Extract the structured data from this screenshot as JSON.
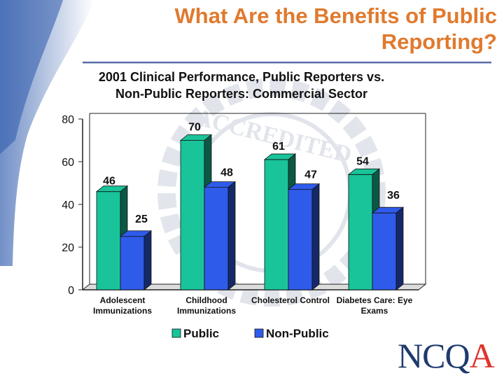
{
  "slide": {
    "title": "What Are the Benefits of Public Reporting?",
    "logo_text_main": "NCQ",
    "logo_text_accent": "A",
    "watermark_text": "ACCREDITED"
  },
  "colors": {
    "title": "#E07A2E",
    "public": "#19C49A",
    "non_public": "#2F5BEA",
    "left_decoration": "#2E5AAC",
    "logo_main": "#1F3A6E",
    "logo_accent": "#E0342C"
  },
  "chart_data": {
    "type": "bar",
    "title_lines": [
      "2001 Clinical Performance, Public Reporters vs.",
      "Non-Public Reporters: Commercial Sector"
    ],
    "categories": [
      [
        "Adolescent",
        "Immunizations"
      ],
      [
        "Childhood",
        "Immunizations"
      ],
      [
        "Cholesterol Control"
      ],
      [
        "Diabetes Care: Eye",
        "Exams"
      ]
    ],
    "series": [
      {
        "name": "Public",
        "values": [
          46,
          70,
          61,
          54
        ]
      },
      {
        "name": "Non-Public",
        "values": [
          25,
          48,
          47,
          36
        ]
      }
    ],
    "ylim": [
      0,
      80
    ],
    "yticks": [
      0,
      20,
      40,
      60,
      80
    ],
    "grid": false,
    "three_d": true,
    "legend": "bottom"
  }
}
